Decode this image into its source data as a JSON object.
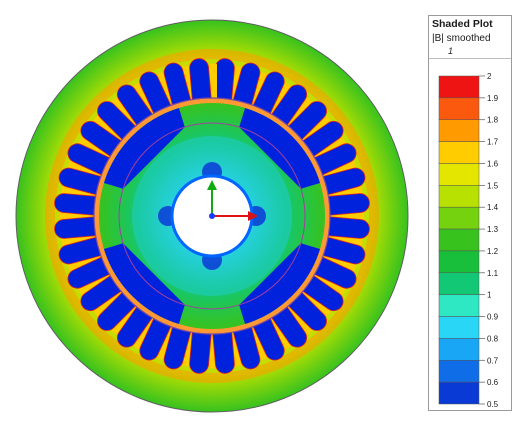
{
  "legend": {
    "title": "Shaded Plot",
    "subtitle": "|B| smoothed",
    "number": "1",
    "ticks": [
      "2",
      "1.9",
      "1.8",
      "1.7",
      "1.6",
      "1.5",
      "1.4",
      "1.3",
      "1.2",
      "1.1",
      "1",
      "0.9",
      "0.8",
      "0.7",
      "0.6",
      "0.5"
    ],
    "colors": [
      "#ef1414",
      "#fb5a0e",
      "#ff9a00",
      "#ffcc00",
      "#e5e600",
      "#b8e000",
      "#75d20e",
      "#37c21e",
      "#18bf3a",
      "#12c874",
      "#2ee8c4",
      "#2ad6f5",
      "#18a6f5",
      "#0f6de8",
      "#0a3ad6"
    ]
  },
  "palette": {
    "background": "#ffffff",
    "stator_outer": "#66cc33",
    "stator_mid": "#ffcc00",
    "stator_hot": "#ff9900",
    "slot_fill": "#0022dd",
    "slot_outline": "#dd2222",
    "tooth": "#ffcc00",
    "airgap_band": "#ff9933",
    "rotor_pole": "#0022dd",
    "rotor_core": "#22cccc",
    "rotor_inner": "#66ddee",
    "shaft_hole_rim": "#0066ff",
    "axis_x": "#dd1111",
    "axis_y": "#11aa11"
  },
  "icons": [
    "coordinate-axes-icon"
  ]
}
